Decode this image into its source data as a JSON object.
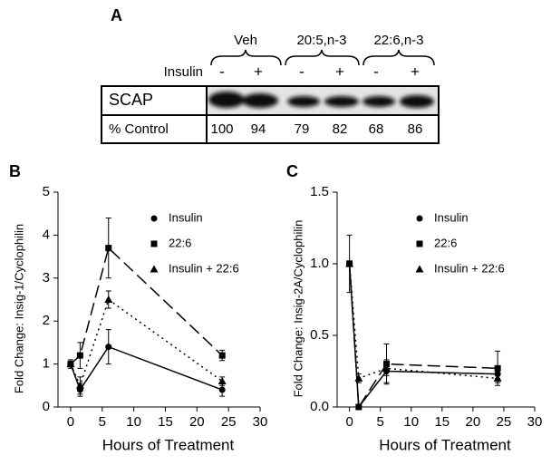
{
  "panel_a": {
    "label": "A",
    "groups": [
      "Veh",
      "20:5,n-3",
      "22:6,n-3"
    ],
    "treatment": "Insulin",
    "signs": [
      "-",
      "+",
      "-",
      "+",
      "-",
      "+"
    ],
    "rows": [
      "SCAP",
      "% Control"
    ],
    "percent_control": [
      100,
      94,
      79,
      82,
      68,
      86
    ]
  },
  "chart_data": [
    {
      "type": "line",
      "title": "B",
      "xlabel": "Hours of Treatment",
      "ylabel": "Fold Change: Insig-1/Cyclophilin",
      "x": [
        0,
        1.5,
        6,
        24
      ],
      "xlim": [
        -2,
        30
      ],
      "xticks": [
        0,
        5,
        10,
        15,
        20,
        25,
        30
      ],
      "ylim": [
        0,
        5
      ],
      "yticks": [
        0,
        1,
        2,
        3,
        4,
        5
      ],
      "legend": "upper right",
      "series": [
        {
          "name": "Insulin",
          "color": "#000000",
          "marker": "circle",
          "dash": "solid",
          "values": [
            1.0,
            0.4,
            1.4,
            0.4
          ],
          "errors": [
            0.05,
            0.15,
            0.4,
            0.15
          ]
        },
        {
          "name": "22:6",
          "color": "#000000",
          "marker": "square",
          "dash": "dash",
          "values": [
            1.0,
            1.2,
            3.7,
            1.2
          ],
          "errors": [
            0.1,
            0.3,
            0.7,
            0.12
          ]
        },
        {
          "name": "Insulin + 22:6",
          "color": "#000000",
          "marker": "triangle",
          "dash": "dot",
          "values": [
            1.0,
            0.5,
            2.5,
            0.6
          ],
          "errors": [
            0.05,
            0.2,
            0.2,
            0.1
          ]
        }
      ]
    },
    {
      "type": "line",
      "title": "C",
      "xlabel": "Hours of Treatment",
      "ylabel": "Fold Change: Insig-2A/Cyclophilin",
      "x": [
        0,
        1.5,
        6,
        24
      ],
      "xlim": [
        -2,
        30
      ],
      "xticks": [
        0,
        5,
        10,
        15,
        20,
        25,
        30
      ],
      "ylim": [
        0,
        1.5
      ],
      "yticks": [
        {
          "value": 0,
          "label": "0.0"
        },
        0.5,
        {
          "value": 1,
          "label": "1.0"
        },
        {
          "value": 1.5,
          "label": "1.5"
        }
      ],
      "legend": "upper right",
      "series": [
        {
          "name": "Insulin",
          "color": "#000000",
          "marker": "circle",
          "dash": "solid",
          "values": [
            1.0,
            0.0,
            0.25,
            0.23
          ],
          "errors": [
            0.02,
            0.01,
            0.08,
            0.03
          ]
        },
        {
          "name": "22:6",
          "color": "#000000",
          "marker": "square",
          "dash": "dash",
          "values": [
            1.0,
            0.0,
            0.3,
            0.27
          ],
          "errors": [
            0.2,
            0.01,
            0.14,
            0.12
          ]
        },
        {
          "name": "Insulin + 22:6",
          "color": "#000000",
          "marker": "triangle",
          "dash": "dot",
          "values": [
            1.0,
            0.2,
            0.27,
            0.2
          ],
          "errors": [
            0.02,
            0.03,
            0.05,
            0.03
          ]
        }
      ]
    }
  ]
}
